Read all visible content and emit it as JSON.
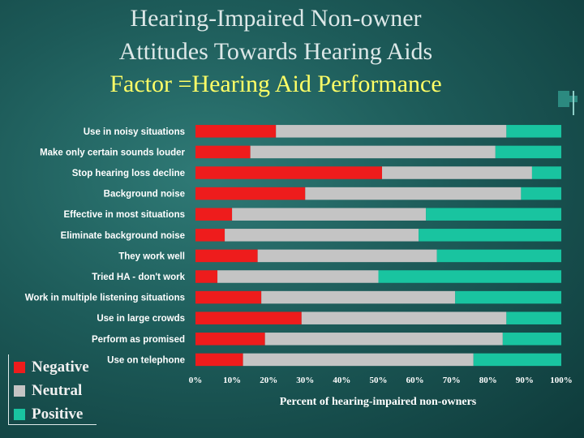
{
  "slide": {
    "title_line1": "Hearing-Impaired Non-owner",
    "title_line2": "Attitudes Towards Hearing Aids",
    "title_line3": "Factor =Hearing Aid Performance"
  },
  "colors": {
    "negative": "#ee1c1c",
    "neutral": "#c4c4c4",
    "positive": "#19c4a0",
    "title_yellow": "#ffff66"
  },
  "legend": {
    "negative": "Negative",
    "neutral": "Neutral",
    "positive": "Positive"
  },
  "chart_data": {
    "type": "bar",
    "orientation": "horizontal-stacked-100",
    "categories": [
      "Use in noisy situations",
      "Make only certain sounds louder",
      "Stop hearing loss decline",
      "Background noise",
      "Effective in most situations",
      "Eliminate background noise",
      "They work well",
      "Tried HA - don't  work",
      "Work in multiple listening situations",
      "Use in large crowds",
      "Perform as promised",
      "Use on telephone"
    ],
    "series": [
      {
        "name": "Negative",
        "values": [
          22,
          15,
          51,
          30,
          10,
          8,
          17,
          6,
          18,
          29,
          19,
          13
        ]
      },
      {
        "name": "Neutral",
        "values": [
          63,
          67,
          41,
          59,
          53,
          53,
          49,
          44,
          53,
          56,
          65,
          63
        ]
      },
      {
        "name": "Positive",
        "values": [
          15,
          18,
          8,
          11,
          37,
          39,
          34,
          50,
          29,
          15,
          16,
          24
        ]
      }
    ],
    "xlim": [
      0,
      100
    ],
    "xticks": [
      "0%",
      "10%",
      "20%",
      "30%",
      "40%",
      "50%",
      "60%",
      "70%",
      "80%",
      "90%",
      "100%"
    ],
    "xlabel": "Percent of hearing-impaired non-owners",
    "ylabel": "",
    "legend_position": "bottom-left"
  }
}
